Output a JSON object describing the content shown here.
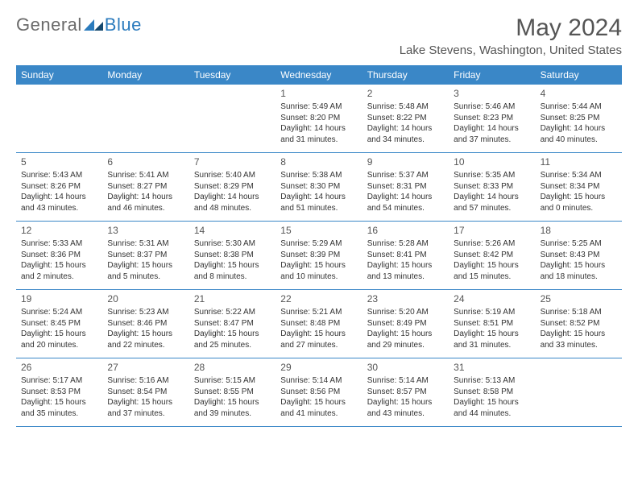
{
  "logo": {
    "word1": "General",
    "word2": "Blue"
  },
  "header": {
    "month": "May 2024",
    "location": "Lake Stevens, Washington, United States"
  },
  "colors": {
    "accent": "#3a87c7",
    "text": "#333333",
    "muted": "#555555"
  },
  "daynames": [
    "Sunday",
    "Monday",
    "Tuesday",
    "Wednesday",
    "Thursday",
    "Friday",
    "Saturday"
  ],
  "weeks": [
    [
      {
        "n": "",
        "sr": "",
        "ss": "",
        "dl": ""
      },
      {
        "n": "",
        "sr": "",
        "ss": "",
        "dl": ""
      },
      {
        "n": "",
        "sr": "",
        "ss": "",
        "dl": ""
      },
      {
        "n": "1",
        "sr": "5:49 AM",
        "ss": "8:20 PM",
        "dl": "14 hours and 31 minutes."
      },
      {
        "n": "2",
        "sr": "5:48 AM",
        "ss": "8:22 PM",
        "dl": "14 hours and 34 minutes."
      },
      {
        "n": "3",
        "sr": "5:46 AM",
        "ss": "8:23 PM",
        "dl": "14 hours and 37 minutes."
      },
      {
        "n": "4",
        "sr": "5:44 AM",
        "ss": "8:25 PM",
        "dl": "14 hours and 40 minutes."
      }
    ],
    [
      {
        "n": "5",
        "sr": "5:43 AM",
        "ss": "8:26 PM",
        "dl": "14 hours and 43 minutes."
      },
      {
        "n": "6",
        "sr": "5:41 AM",
        "ss": "8:27 PM",
        "dl": "14 hours and 46 minutes."
      },
      {
        "n": "7",
        "sr": "5:40 AM",
        "ss": "8:29 PM",
        "dl": "14 hours and 48 minutes."
      },
      {
        "n": "8",
        "sr": "5:38 AM",
        "ss": "8:30 PM",
        "dl": "14 hours and 51 minutes."
      },
      {
        "n": "9",
        "sr": "5:37 AM",
        "ss": "8:31 PM",
        "dl": "14 hours and 54 minutes."
      },
      {
        "n": "10",
        "sr": "5:35 AM",
        "ss": "8:33 PM",
        "dl": "14 hours and 57 minutes."
      },
      {
        "n": "11",
        "sr": "5:34 AM",
        "ss": "8:34 PM",
        "dl": "15 hours and 0 minutes."
      }
    ],
    [
      {
        "n": "12",
        "sr": "5:33 AM",
        "ss": "8:36 PM",
        "dl": "15 hours and 2 minutes."
      },
      {
        "n": "13",
        "sr": "5:31 AM",
        "ss": "8:37 PM",
        "dl": "15 hours and 5 minutes."
      },
      {
        "n": "14",
        "sr": "5:30 AM",
        "ss": "8:38 PM",
        "dl": "15 hours and 8 minutes."
      },
      {
        "n": "15",
        "sr": "5:29 AM",
        "ss": "8:39 PM",
        "dl": "15 hours and 10 minutes."
      },
      {
        "n": "16",
        "sr": "5:28 AM",
        "ss": "8:41 PM",
        "dl": "15 hours and 13 minutes."
      },
      {
        "n": "17",
        "sr": "5:26 AM",
        "ss": "8:42 PM",
        "dl": "15 hours and 15 minutes."
      },
      {
        "n": "18",
        "sr": "5:25 AM",
        "ss": "8:43 PM",
        "dl": "15 hours and 18 minutes."
      }
    ],
    [
      {
        "n": "19",
        "sr": "5:24 AM",
        "ss": "8:45 PM",
        "dl": "15 hours and 20 minutes."
      },
      {
        "n": "20",
        "sr": "5:23 AM",
        "ss": "8:46 PM",
        "dl": "15 hours and 22 minutes."
      },
      {
        "n": "21",
        "sr": "5:22 AM",
        "ss": "8:47 PM",
        "dl": "15 hours and 25 minutes."
      },
      {
        "n": "22",
        "sr": "5:21 AM",
        "ss": "8:48 PM",
        "dl": "15 hours and 27 minutes."
      },
      {
        "n": "23",
        "sr": "5:20 AM",
        "ss": "8:49 PM",
        "dl": "15 hours and 29 minutes."
      },
      {
        "n": "24",
        "sr": "5:19 AM",
        "ss": "8:51 PM",
        "dl": "15 hours and 31 minutes."
      },
      {
        "n": "25",
        "sr": "5:18 AM",
        "ss": "8:52 PM",
        "dl": "15 hours and 33 minutes."
      }
    ],
    [
      {
        "n": "26",
        "sr": "5:17 AM",
        "ss": "8:53 PM",
        "dl": "15 hours and 35 minutes."
      },
      {
        "n": "27",
        "sr": "5:16 AM",
        "ss": "8:54 PM",
        "dl": "15 hours and 37 minutes."
      },
      {
        "n": "28",
        "sr": "5:15 AM",
        "ss": "8:55 PM",
        "dl": "15 hours and 39 minutes."
      },
      {
        "n": "29",
        "sr": "5:14 AM",
        "ss": "8:56 PM",
        "dl": "15 hours and 41 minutes."
      },
      {
        "n": "30",
        "sr": "5:14 AM",
        "ss": "8:57 PM",
        "dl": "15 hours and 43 minutes."
      },
      {
        "n": "31",
        "sr": "5:13 AM",
        "ss": "8:58 PM",
        "dl": "15 hours and 44 minutes."
      },
      {
        "n": "",
        "sr": "",
        "ss": "",
        "dl": ""
      }
    ]
  ],
  "labels": {
    "sunrise": "Sunrise:",
    "sunset": "Sunset:",
    "daylight": "Daylight:"
  }
}
